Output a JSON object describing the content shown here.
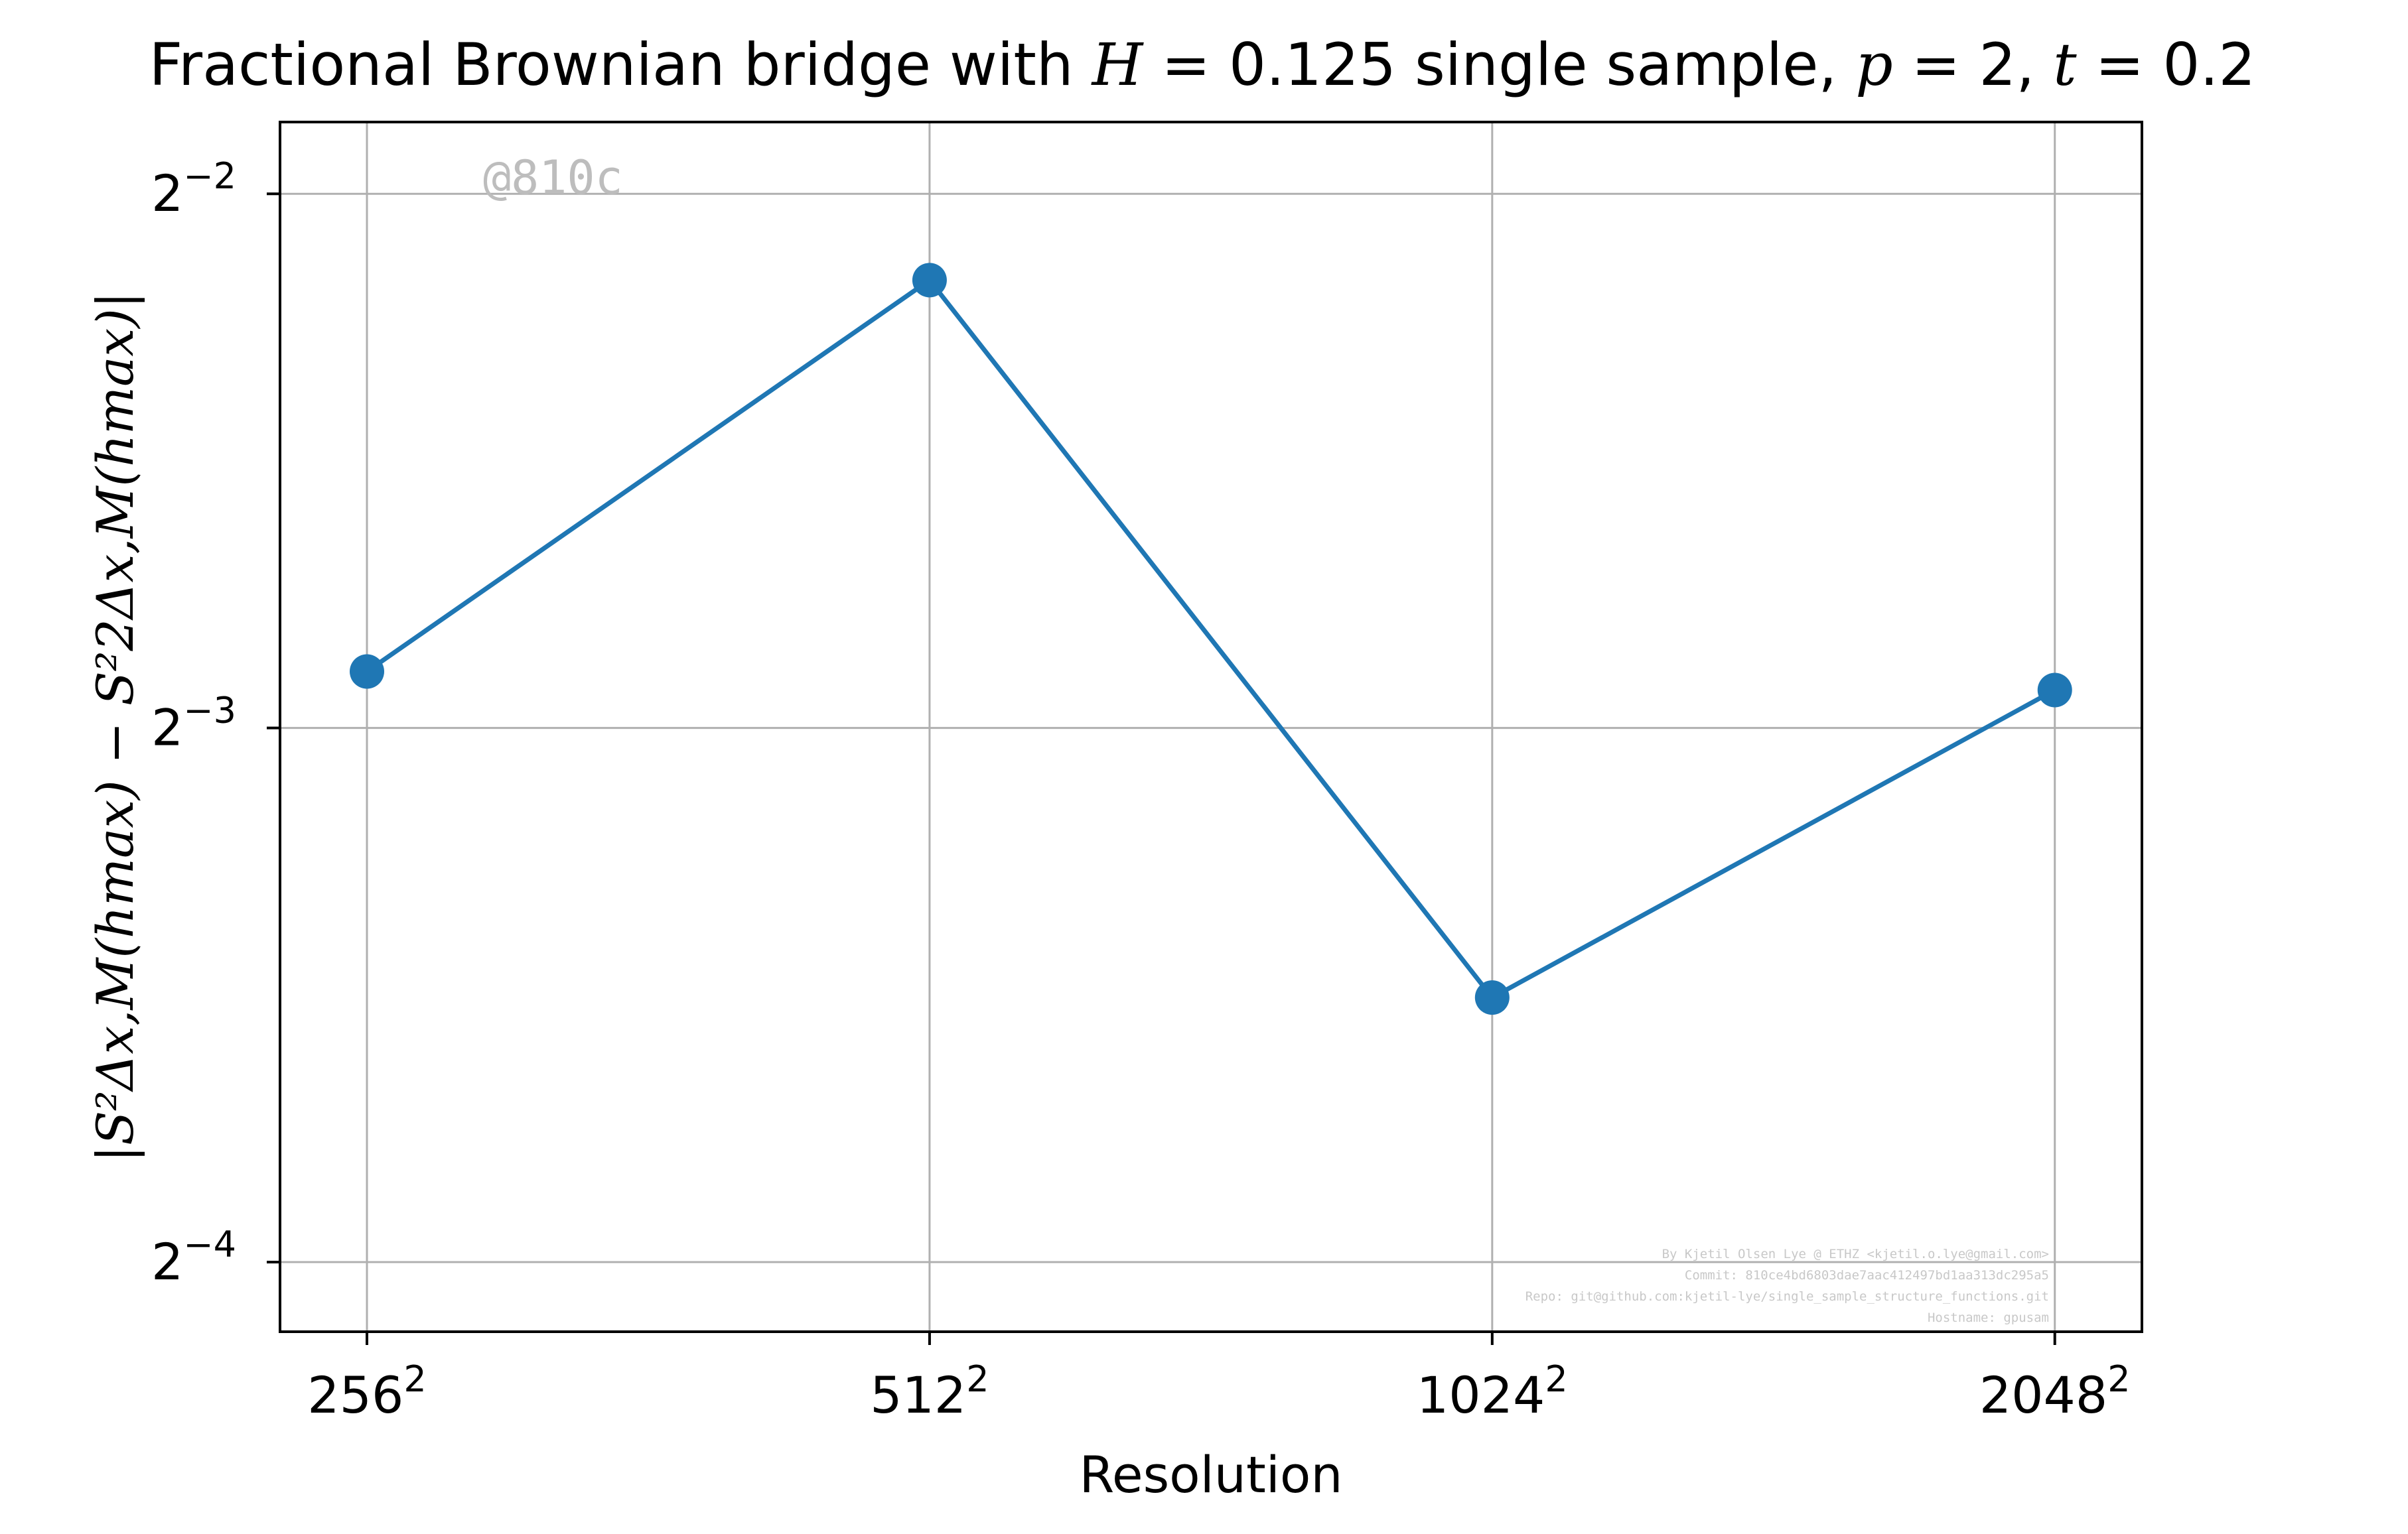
{
  "chart_data": {
    "type": "line",
    "title": "Fractional Brownian bridge with H = 0.125 single sample, p = 2, t = 0.2",
    "title_parts": {
      "prefix": "Fractional Brownian bridge with ",
      "var1": "H",
      "eq1": " = 0.125 single sample, ",
      "var2": "p",
      "eq2": " = 2, ",
      "var3": "t",
      "eq3": " = 0.2"
    },
    "xlabel": "Resolution",
    "ylabel": "|S²Δx,M(hmax) − S²2Δx,M(hmax)|",
    "x_scale": "log2",
    "y_scale": "log2",
    "x": [
      256,
      512,
      1024,
      2048
    ],
    "x_tick_labels": [
      {
        "base": "256",
        "exp": "2"
      },
      {
        "base": "512",
        "exp": "2"
      },
      {
        "base": "1024",
        "exp": "2"
      },
      {
        "base": "2048",
        "exp": "2"
      }
    ],
    "y_ticks": [
      {
        "base": "2",
        "exp": "−2",
        "value": 0.25
      },
      {
        "base": "2",
        "exp": "−3",
        "value": 0.125
      },
      {
        "base": "2",
        "exp": "−4",
        "value": 0.0625
      }
    ],
    "xlim": [
      230,
      2280
    ],
    "ylim": [
      0.0571,
      0.2744
    ],
    "series": [
      {
        "values": [
          0.1345,
          0.2235,
          0.0881,
          0.1313
        ],
        "color": "#1f77b4",
        "marker": "circle"
      }
    ],
    "grid": true,
    "legend": "none"
  },
  "annotations": {
    "watermark": "@810c",
    "credit_lines": [
      "By Kjetil Olsen Lye @ ETHZ <kjetil.o.lye@gmail.com>",
      "Commit: 810ce4bd6803dae7aac412497bd1aa313dc295a5",
      "Repo: git@github.com:kjetil-lye/single_sample_structure_functions.git",
      "Hostname: gpusam"
    ]
  },
  "colors": {
    "line": "#1f77b4",
    "grid": "#b0b0b0",
    "axes": "#000000",
    "watermark": "#bdbdbd",
    "credit": "#c8c8c8"
  }
}
